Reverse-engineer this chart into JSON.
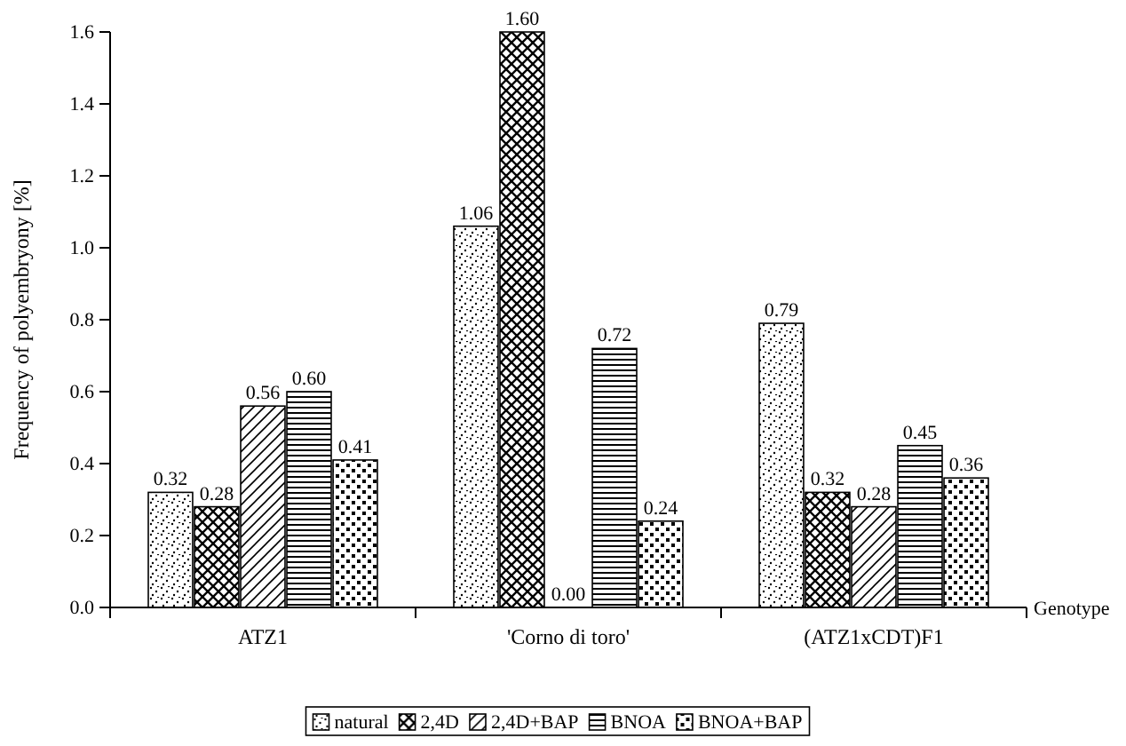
{
  "chart_data": {
    "type": "bar",
    "xlabel": "Genotype",
    "ylabel": "Frequency of polyembryony [%]",
    "categories": [
      "ATZ1",
      "'Corno di toro'",
      "(ATZ1xCDT)F1"
    ],
    "series": [
      {
        "name": "natural",
        "color": "#000000",
        "values": [
          0.32,
          1.06,
          0.79
        ],
        "value_labels": [
          "0.32",
          "1.06",
          "0.79"
        ]
      },
      {
        "name": "2,4D",
        "color": "#000000",
        "values": [
          0.28,
          1.6,
          0.32
        ],
        "value_labels": [
          "0.28",
          "1.60",
          "0.32"
        ]
      },
      {
        "name": "2,4D+BAP",
        "color": "#000000",
        "values": [
          0.56,
          0,
          0.28
        ],
        "value_labels": [
          "0.56",
          "0.00",
          "0.28"
        ]
      },
      {
        "name": "BNOA",
        "color": "#000000",
        "values": [
          0.6,
          0.72,
          0.45
        ],
        "value_labels": [
          "0.60",
          "0.72",
          "0.45"
        ]
      },
      {
        "name": "BNOA+BAP",
        "color": "#000000",
        "values": [
          0.41,
          0.24,
          0.36
        ],
        "value_labels": [
          "0.41",
          "0.24",
          "0.36"
        ]
      }
    ],
    "ylim": [
      0,
      1.6
    ],
    "yticks": [
      {
        "value": 0,
        "label": "0.0"
      },
      {
        "value": 0.2,
        "label": "0.2"
      },
      {
        "value": 0.4,
        "label": "0.4"
      },
      {
        "value": 0.6,
        "label": "0.6"
      },
      {
        "value": 0.8,
        "label": "0.8"
      },
      {
        "value": 1.0,
        "label": "1.0"
      },
      {
        "value": 1.2,
        "label": "1.2"
      },
      {
        "value": 1.4,
        "label": "1.4"
      },
      {
        "value": 1.6,
        "label": "1.6"
      }
    ],
    "legend": "bottom",
    "grid": false
  }
}
